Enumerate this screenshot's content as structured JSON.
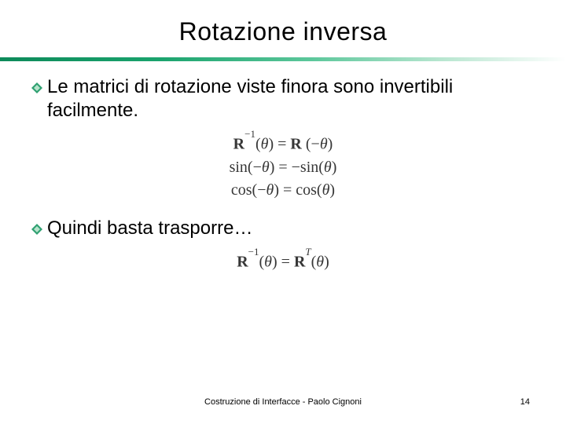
{
  "slide": {
    "title": "Rotazione inversa",
    "rule_gradient": {
      "start": "#0d8a5a",
      "mid1": "#1aa36d",
      "mid2": "#5cc79b",
      "mid3": "#b8e6d0",
      "end": "#ffffff"
    },
    "bullets": [
      {
        "text": "Le matrici di rotazione viste finora sono invertibili facilmente."
      },
      {
        "text": "Quindi basta trasporre…"
      }
    ],
    "bullet_diamond": {
      "size": 14,
      "outer_color": "#2fa071",
      "inner_color": "#b6e3cb"
    },
    "equations_block1": [
      {
        "html": "<span class='bold'>R</span><sup>&minus;1</sup>(<i>&theta;</i>) = <span class='bold'>R</span> (&minus;<i>&theta;</i>)"
      },
      {
        "html": "sin(&minus;<i>&theta;</i>) = &minus;sin(<i>&theta;</i>)"
      },
      {
        "html": "cos(&minus;<i>&theta;</i>) = cos(<i>&theta;</i>)"
      }
    ],
    "equations_block2": [
      {
        "html": "<span class='bold'>R</span><sup>&minus;1</sup>(<i>&theta;</i>) = <span class='bold'>R</span><sup><i>T</i></sup>(<i>&theta;</i>)"
      }
    ],
    "footer": "Costruzione di Interfacce - Paolo Cignoni",
    "page_number": "14",
    "typography": {
      "title_fontsize": 32,
      "body_fontsize": 24,
      "equation_fontsize": 20,
      "footer_fontsize": 11,
      "title_color": "#000000",
      "body_color": "#000000",
      "equation_color": "#373737"
    },
    "background_color": "#ffffff"
  }
}
